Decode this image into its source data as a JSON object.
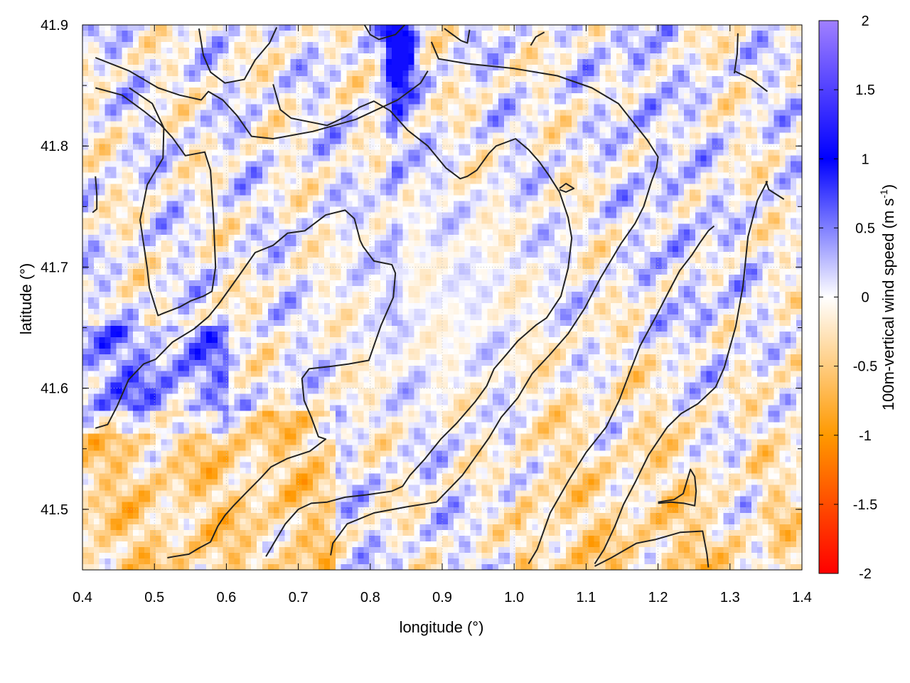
{
  "chart_data": {
    "type": "heatmap",
    "xlabel": "longitude (°)",
    "ylabel": "latitude (°)",
    "colorbar_label": {
      "main": "100m-vertical wind speed (m s",
      "sup": "-1",
      "close": ")"
    },
    "xlim": [
      0.4,
      1.4
    ],
    "ylim": [
      41.45,
      41.9
    ],
    "x_ticks": [
      0.4,
      0.5,
      0.6,
      0.7,
      0.8,
      0.9,
      1.0,
      1.1,
      1.2,
      1.3,
      1.4
    ],
    "x_tick_labels": [
      "0.4",
      "0.5",
      "0.6",
      "0.7",
      "0.8",
      "0.9",
      "1.0",
      "1.1",
      "1.2",
      "1.3",
      "1.4"
    ],
    "y_ticks": [
      41.5,
      41.6,
      41.7,
      41.8,
      41.9
    ],
    "y_tick_labels": [
      "41.5",
      "41.6",
      "41.7",
      "41.8",
      "41.9"
    ],
    "color_range": [
      -2,
      2
    ],
    "colorbar_ticks": [
      2,
      1.5,
      1,
      0.5,
      0,
      -0.5,
      -1,
      -1.5,
      -2
    ],
    "colorbar_tick_labels": [
      "2",
      "1.5",
      "1",
      "0.5",
      "0",
      "-0.5",
      "-1",
      "-1.5",
      "-2"
    ],
    "colorscale": [
      {
        "value": -2.0,
        "color": "#ff0000"
      },
      {
        "value": -1.0,
        "color": "#ff9900"
      },
      {
        "value": 0.0,
        "color": "#ffffff"
      },
      {
        "value": 1.0,
        "color": "#0000ff"
      },
      {
        "value": 2.0,
        "color": "#a080ff"
      }
    ],
    "grid": true,
    "colorbar_position": "right",
    "contour_color": "#222222",
    "contours": [
      [
        [
          0.418,
          41.873
        ],
        [
          0.465,
          41.862
        ],
        [
          0.505,
          41.848
        ],
        [
          0.535,
          41.842
        ],
        [
          0.565,
          41.838
        ],
        [
          0.575,
          41.845
        ],
        [
          0.595,
          41.838
        ],
        [
          0.615,
          41.825
        ],
        [
          0.635,
          41.808
        ],
        [
          0.665,
          41.806
        ],
        [
          0.72,
          41.812
        ],
        [
          0.78,
          41.822
        ],
        [
          0.838,
          41.838
        ],
        [
          0.87,
          41.852
        ],
        [
          0.88,
          41.862
        ]
      ],
      [
        [
          0.418,
          41.848
        ],
        [
          0.455,
          41.842
        ],
        [
          0.485,
          41.829
        ],
        [
          0.508,
          41.818
        ],
        [
          0.525,
          41.807
        ],
        [
          0.543,
          41.792
        ],
        [
          0.57,
          41.795
        ],
        [
          0.578,
          41.78
        ],
        [
          0.582,
          41.742
        ],
        [
          0.585,
          41.7
        ],
        [
          0.58,
          41.68
        ],
        [
          0.568,
          41.676
        ],
        [
          0.55,
          41.672
        ],
        [
          0.535,
          41.667
        ],
        [
          0.513,
          41.662
        ],
        [
          0.505,
          41.66
        ],
        [
          0.493,
          41.683
        ],
        [
          0.49,
          41.699
        ],
        [
          0.48,
          41.739
        ],
        [
          0.484,
          41.75
        ],
        [
          0.49,
          41.768
        ],
        [
          0.512,
          41.79
        ],
        [
          0.513,
          41.815
        ],
        [
          0.497,
          41.835
        ],
        [
          0.465,
          41.848
        ]
      ],
      [
        [
          0.418,
          41.567
        ],
        [
          0.435,
          41.57
        ],
        [
          0.448,
          41.585
        ],
        [
          0.464,
          41.607
        ],
        [
          0.485,
          41.62
        ],
        [
          0.502,
          41.624
        ],
        [
          0.525,
          41.638
        ],
        [
          0.555,
          41.649
        ],
        [
          0.575,
          41.659
        ],
        [
          0.59,
          41.67
        ],
        [
          0.62,
          41.695
        ],
        [
          0.64,
          41.712
        ],
        [
          0.665,
          41.718
        ],
        [
          0.685,
          41.728
        ],
        [
          0.709,
          41.73
        ],
        [
          0.738,
          41.743
        ],
        [
          0.765,
          41.747
        ],
        [
          0.778,
          41.74
        ],
        [
          0.786,
          41.722
        ],
        [
          0.79,
          41.717
        ],
        [
          0.805,
          41.705
        ],
        [
          0.83,
          41.702
        ],
        [
          0.835,
          41.695
        ],
        [
          0.832,
          41.675
        ],
        [
          0.815,
          41.652
        ],
        [
          0.805,
          41.635
        ],
        [
          0.798,
          41.623
        ],
        [
          0.77,
          41.62
        ],
        [
          0.745,
          41.618
        ],
        [
          0.715,
          41.616
        ],
        [
          0.705,
          41.608
        ],
        [
          0.708,
          41.59
        ],
        [
          0.718,
          41.576
        ],
        [
          0.728,
          41.56
        ],
        [
          0.738,
          41.558
        ],
        [
          0.716,
          41.548
        ],
        [
          0.685,
          41.542
        ],
        [
          0.662,
          41.535
        ],
        [
          0.648,
          41.526
        ],
        [
          0.628,
          41.514
        ],
        [
          0.61,
          41.503
        ],
        [
          0.598,
          41.495
        ],
        [
          0.588,
          41.486
        ],
        [
          0.578,
          41.473
        ],
        [
          0.562,
          41.468
        ],
        [
          0.548,
          41.463
        ],
        [
          0.527,
          41.461
        ],
        [
          0.518,
          41.46
        ]
      ],
      [
        [
          0.655,
          41.461
        ],
        [
          0.668,
          41.474
        ],
        [
          0.682,
          41.488
        ],
        [
          0.7,
          41.5
        ],
        [
          0.718,
          41.505
        ],
        [
          0.74,
          41.506
        ],
        [
          0.765,
          41.51
        ],
        [
          0.795,
          41.512
        ],
        [
          0.83,
          41.515
        ],
        [
          0.845,
          41.519
        ],
        [
          0.855,
          41.528
        ],
        [
          0.875,
          41.541
        ],
        [
          0.898,
          41.558
        ],
        [
          0.92,
          41.571
        ],
        [
          0.946,
          41.589
        ],
        [
          0.962,
          41.602
        ],
        [
          0.972,
          41.616
        ],
        [
          0.988,
          41.627
        ],
        [
          1.005,
          41.639
        ],
        [
          1.03,
          41.652
        ],
        [
          1.045,
          41.658
        ],
        [
          1.065,
          41.676
        ],
        [
          1.075,
          41.699
        ],
        [
          1.08,
          41.724
        ],
        [
          1.075,
          41.741
        ],
        [
          1.063,
          41.762
        ],
        [
          1.048,
          41.776
        ],
        [
          1.035,
          41.787
        ],
        [
          1.02,
          41.797
        ],
        [
          1.002,
          41.806
        ],
        [
          0.975,
          41.8
        ],
        [
          0.965,
          41.794
        ],
        [
          0.948,
          41.78
        ],
        [
          0.935,
          41.775
        ],
        [
          0.925,
          41.773
        ],
        [
          0.905,
          41.782
        ],
        [
          0.88,
          41.8
        ],
        [
          0.852,
          41.813
        ],
        [
          0.828,
          41.829
        ],
        [
          0.805,
          41.837
        ],
        [
          0.785,
          41.832
        ],
        [
          0.765,
          41.824
        ],
        [
          0.74,
          41.817
        ],
        [
          0.715,
          41.82
        ],
        [
          0.69,
          41.823
        ],
        [
          0.675,
          41.83
        ],
        [
          0.665,
          41.851
        ]
      ],
      [
        [
          0.745,
          41.462
        ],
        [
          0.748,
          41.472
        ],
        [
          0.768,
          41.488
        ],
        [
          0.805,
          41.497
        ],
        [
          0.85,
          41.502
        ],
        [
          0.892,
          41.506
        ],
        [
          0.928,
          41.528
        ],
        [
          0.965,
          41.559
        ],
        [
          0.982,
          41.576
        ],
        [
          1.005,
          41.592
        ],
        [
          1.025,
          41.612
        ],
        [
          1.05,
          41.628
        ],
        [
          1.075,
          41.645
        ],
        [
          1.098,
          41.666
        ],
        [
          1.12,
          41.691
        ],
        [
          1.148,
          41.719
        ],
        [
          1.168,
          41.736
        ],
        [
          1.18,
          41.75
        ],
        [
          1.191,
          41.771
        ],
        [
          1.198,
          41.782
        ],
        [
          1.2,
          41.791
        ],
        [
          1.185,
          41.805
        ],
        [
          1.165,
          41.82
        ],
        [
          1.145,
          41.835
        ],
        [
          1.108,
          41.848
        ],
        [
          1.06,
          41.858
        ],
        [
          1.0,
          41.864
        ],
        [
          0.935,
          41.868
        ],
        [
          0.895,
          41.872
        ],
        [
          0.885,
          41.886
        ]
      ],
      [
        [
          1.02,
          41.455
        ],
        [
          1.032,
          41.467
        ],
        [
          1.05,
          41.497
        ],
        [
          1.077,
          41.525
        ],
        [
          1.1,
          41.547
        ],
        [
          1.128,
          41.568
        ],
        [
          1.146,
          41.59
        ],
        [
          1.16,
          41.612
        ],
        [
          1.175,
          41.635
        ],
        [
          1.196,
          41.658
        ],
        [
          1.215,
          41.68
        ],
        [
          1.23,
          41.697
        ],
        [
          1.247,
          41.71
        ],
        [
          1.258,
          41.72
        ],
        [
          1.27,
          41.73
        ],
        [
          1.278,
          41.734
        ]
      ],
      [
        [
          1.112,
          41.453
        ],
        [
          1.135,
          41.46
        ],
        [
          1.17,
          41.472
        ],
        [
          1.196,
          41.475
        ],
        [
          1.231,
          41.481
        ],
        [
          1.262,
          41.482
        ],
        [
          1.268,
          41.463
        ],
        [
          1.27,
          41.452
        ]
      ],
      [
        [
          1.2,
          41.505
        ],
        [
          1.218,
          41.506
        ],
        [
          1.236,
          41.505
        ],
        [
          1.251,
          41.503
        ],
        [
          1.253,
          41.515
        ],
        [
          1.251,
          41.527
        ],
        [
          1.245,
          41.533
        ],
        [
          1.235,
          41.513
        ],
        [
          1.222,
          41.508
        ],
        [
          1.2,
          41.506
        ]
      ],
      [
        [
          1.063,
          41.764
        ],
        [
          1.072,
          41.762
        ],
        [
          1.083,
          41.765
        ],
        [
          1.072,
          41.769
        ],
        [
          1.063,
          41.765
        ]
      ],
      [
        [
          0.418,
          41.775
        ],
        [
          0.42,
          41.76
        ],
        [
          0.42,
          41.748
        ],
        [
          0.414,
          41.745
        ]
      ],
      [
        [
          0.562,
          41.897
        ],
        [
          0.568,
          41.875
        ],
        [
          0.578,
          41.861
        ],
        [
          0.598,
          41.852
        ],
        [
          0.625,
          41.855
        ],
        [
          0.64,
          41.871
        ],
        [
          0.66,
          41.885
        ],
        [
          0.67,
          41.898
        ]
      ],
      [
        [
          0.792,
          41.9
        ],
        [
          0.8,
          41.892
        ],
        [
          0.812,
          41.888
        ],
        [
          0.835,
          41.892
        ],
        [
          0.848,
          41.9
        ]
      ],
      [
        [
          0.903,
          41.897
        ],
        [
          0.926,
          41.887
        ],
        [
          0.935,
          41.885
        ],
        [
          0.938,
          41.896
        ]
      ],
      [
        [
          1.023,
          41.883
        ],
        [
          1.03,
          41.89
        ],
        [
          1.042,
          41.894
        ]
      ],
      [
        [
          1.306,
          41.86
        ],
        [
          1.31,
          41.876
        ],
        [
          1.311,
          41.893
        ]
      ],
      [
        [
          1.306,
          41.862
        ],
        [
          1.33,
          41.855
        ],
        [
          1.352,
          41.845
        ]
      ],
      [
        [
          1.35,
          41.771
        ],
        [
          1.354,
          41.764
        ],
        [
          1.375,
          41.756
        ]
      ],
      [
        [
          1.352,
          41.771
        ],
        [
          1.338,
          41.755
        ],
        [
          1.325,
          41.725
        ],
        [
          1.318,
          41.684
        ],
        [
          1.308,
          41.651
        ],
        [
          1.292,
          41.617
        ],
        [
          1.28,
          41.601
        ],
        [
          1.255,
          41.587
        ],
        [
          1.232,
          41.579
        ],
        [
          1.213,
          41.568
        ],
        [
          1.187,
          41.545
        ],
        [
          1.168,
          41.522
        ],
        [
          1.152,
          41.504
        ],
        [
          1.14,
          41.486
        ],
        [
          1.125,
          41.467
        ],
        [
          1.112,
          41.455
        ]
      ]
    ]
  }
}
